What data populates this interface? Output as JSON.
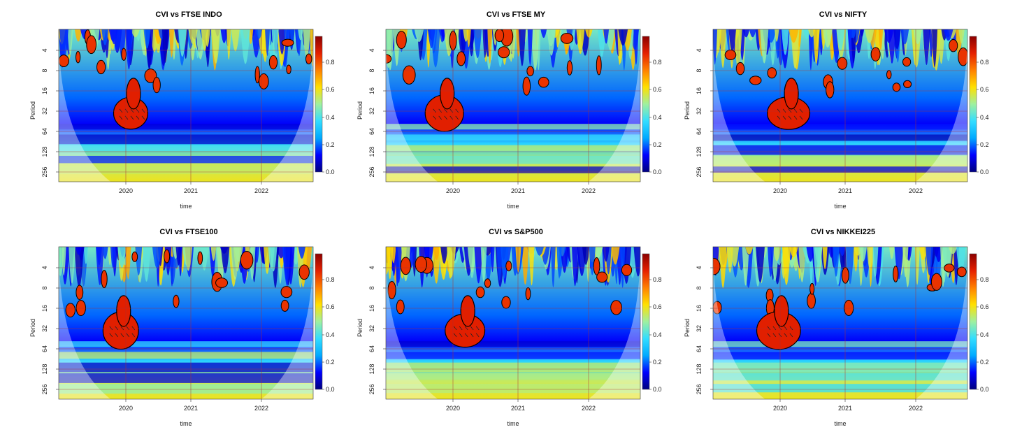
{
  "chart_data": [
    {
      "type": "heatmap",
      "title": "CVI vs FTSE INDO",
      "xlabel": "time",
      "ylabel": "Period",
      "x_ticks": [
        "2020",
        "2021",
        "2022"
      ],
      "y_ticks": [
        "4",
        "8",
        "16",
        "32",
        "64",
        "128",
        "256"
      ],
      "colorbar_ticks": [
        "0.0",
        "0.2",
        "0.4",
        "0.6",
        "0.8"
      ],
      "colorbar_range": [
        0,
        1
      ],
      "y_scale": "log2"
    },
    {
      "type": "heatmap",
      "title": "CVI vs FTSE MY",
      "xlabel": "time",
      "ylabel": "Period",
      "x_ticks": [
        "2020",
        "2021",
        "2022"
      ],
      "y_ticks": [
        "4",
        "8",
        "16",
        "32",
        "64",
        "128",
        "256"
      ],
      "colorbar_ticks": [
        "0.0",
        "0.2",
        "0.4",
        "0.6",
        "0.8"
      ],
      "colorbar_range": [
        0,
        1
      ],
      "y_scale": "log2"
    },
    {
      "type": "heatmap",
      "title": "CVI vs NIFTY",
      "xlabel": "time",
      "ylabel": "Period",
      "x_ticks": [
        "2020",
        "2021",
        "2022"
      ],
      "y_ticks": [
        "4",
        "8",
        "16",
        "32",
        "64",
        "128",
        "256"
      ],
      "colorbar_ticks": [
        "0.0",
        "0.2",
        "0.4",
        "0.6",
        "0.8"
      ],
      "colorbar_range": [
        0,
        1
      ],
      "y_scale": "log2"
    },
    {
      "type": "heatmap",
      "title": "CVI vs FTSE100",
      "xlabel": "time",
      "ylabel": "Period",
      "x_ticks": [
        "2020",
        "2021",
        "2022"
      ],
      "y_ticks": [
        "4",
        "8",
        "16",
        "32",
        "64",
        "128",
        "256"
      ],
      "colorbar_ticks": [
        "0.0",
        "0.2",
        "0.4",
        "0.6",
        "0.8"
      ],
      "colorbar_range": [
        0,
        1
      ],
      "y_scale": "log2"
    },
    {
      "type": "heatmap",
      "title": "CVI vs S&P500",
      "xlabel": "time",
      "ylabel": "Period",
      "x_ticks": [
        "2020",
        "2021",
        "2022"
      ],
      "y_ticks": [
        "4",
        "8",
        "16",
        "32",
        "64",
        "128",
        "256"
      ],
      "colorbar_ticks": [
        "0.0",
        "0.2",
        "0.4",
        "0.6",
        "0.8"
      ],
      "colorbar_range": [
        0,
        1
      ],
      "y_scale": "log2"
    },
    {
      "type": "heatmap",
      "title": "CVI vs NIKKEI225",
      "xlabel": "time",
      "ylabel": "Period",
      "x_ticks": [
        "2020",
        "2021",
        "2022"
      ],
      "y_ticks": [
        "4",
        "8",
        "16",
        "32",
        "64",
        "128",
        "256"
      ],
      "colorbar_ticks": [
        "0.0",
        "0.2",
        "0.4",
        "0.6",
        "0.8"
      ],
      "colorbar_range": [
        0,
        1
      ],
      "y_scale": "log2"
    }
  ],
  "colors": {
    "colormap": [
      "#00007f",
      "#0000ff",
      "#00aaff",
      "#33ddff",
      "#9ff09f",
      "#ffe000",
      "#ff8000",
      "#e52000",
      "#8b0000"
    ],
    "cone_overlay": "#ffffff",
    "gridline": "#b03030",
    "contour": "#000000"
  }
}
